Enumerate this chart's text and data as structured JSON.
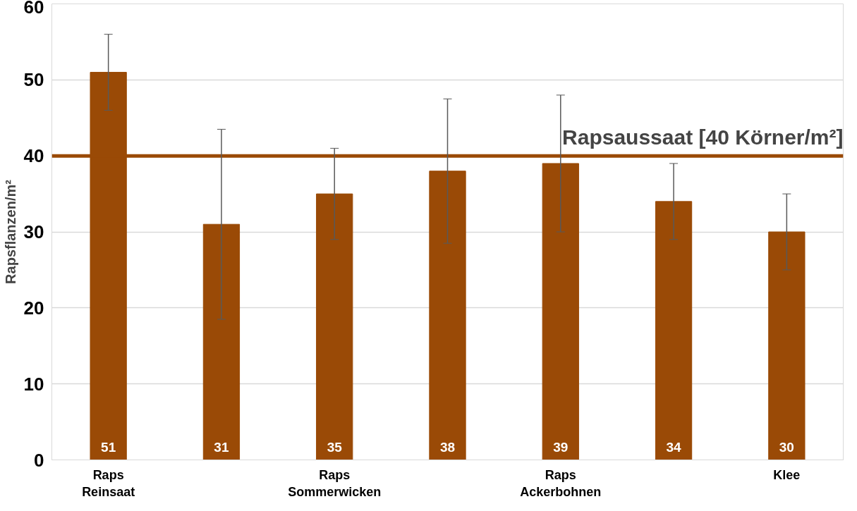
{
  "chart_data": {
    "type": "bar",
    "ylabel": "Rapsflanzen/m²",
    "categories": [
      "Raps\nReinsaat",
      null,
      "Raps\nSommerwicken",
      null,
      "Raps\nAckerbohnen",
      null,
      "Klee"
    ],
    "values": [
      51,
      31,
      35,
      38,
      39,
      34,
      30
    ],
    "errors": [
      5,
      12.5,
      6,
      9.5,
      9,
      5,
      5
    ],
    "color": "#9a4a06",
    "ylim": [
      0,
      60
    ],
    "yticks": [
      0,
      10,
      20,
      30,
      40,
      50,
      60
    ],
    "grid": "y",
    "data_labels": true,
    "ref_lines": [
      {
        "axis": "y",
        "value": 40,
        "label": "Rapsaussaat [40 Körner/m²]",
        "color": "#9a4a06"
      }
    ]
  }
}
